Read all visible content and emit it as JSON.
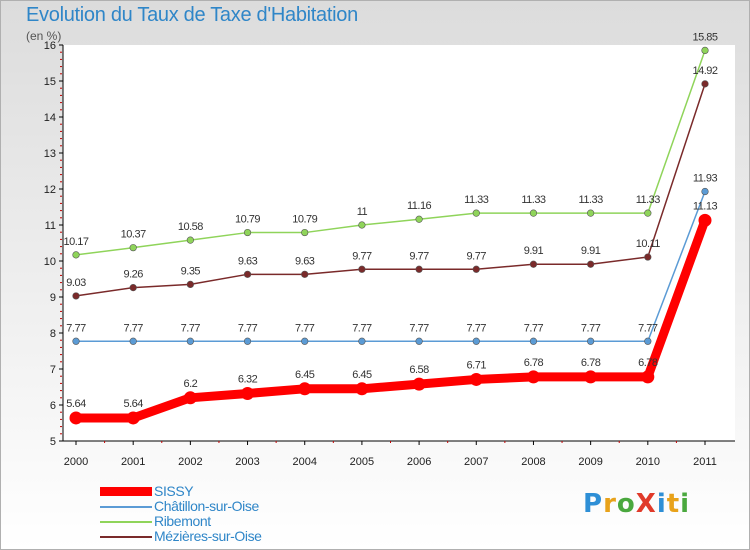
{
  "title": "Evolution du Taux de Taxe d'Habitation",
  "subtitle": "(en %)",
  "logo": {
    "text": "ProXiti",
    "letters": [
      {
        "ch": "P",
        "color": "#2e8fd6"
      },
      {
        "ch": "r",
        "color": "#e8a21a"
      },
      {
        "ch": "o",
        "color": "#4aa83e"
      },
      {
        "ch": "X",
        "color": "#e03a2a"
      },
      {
        "ch": "i",
        "color": "#2e8fd6"
      },
      {
        "ch": "t",
        "color": "#e8a21a"
      },
      {
        "ch": "i",
        "color": "#4aa83e"
      }
    ]
  },
  "chart_data": {
    "type": "line",
    "title": "Evolution du Taux de Taxe d'Habitation",
    "ylabel": "(en %)",
    "xlabel": "",
    "ylim": [
      5,
      16
    ],
    "yticks": [
      "5",
      "6",
      "7",
      "8",
      "9",
      "10",
      "11",
      "12",
      "13",
      "14",
      "15",
      "16"
    ],
    "categories": [
      "2000",
      "2001",
      "2002",
      "2003",
      "2004",
      "2005",
      "2006",
      "2007",
      "2008",
      "2009",
      "2010",
      "2011"
    ],
    "grid": false,
    "legend_position": "bottom-left",
    "series": [
      {
        "name": "SISSY",
        "color": "#ff0000",
        "emphasis": true,
        "values": [
          5.64,
          5.64,
          6.2,
          6.32,
          6.45,
          6.45,
          6.58,
          6.71,
          6.78,
          6.78,
          6.78,
          11.13
        ],
        "labels": [
          "5.64",
          "5.64",
          "6.2",
          "6.32",
          "6.45",
          "6.45",
          "6.58",
          "6.71",
          "6.78",
          "6.78",
          "6.78",
          "11.13"
        ]
      },
      {
        "name": "Châtillon-sur-Oise",
        "color": "#5b9bd5",
        "emphasis": false,
        "values": [
          7.77,
          7.77,
          7.77,
          7.77,
          7.77,
          7.77,
          7.77,
          7.77,
          7.77,
          7.77,
          7.77,
          11.93
        ],
        "labels": [
          "7.77",
          "7.77",
          "7.77",
          "7.77",
          "7.77",
          "7.77",
          "7.77",
          "7.77",
          "7.77",
          "7.77",
          "7.77",
          "11.93"
        ]
      },
      {
        "name": "Ribemont",
        "color": "#8fd45a",
        "emphasis": false,
        "values": [
          10.17,
          10.37,
          10.58,
          10.79,
          10.79,
          11,
          11.16,
          11.33,
          11.33,
          11.33,
          11.33,
          15.85
        ],
        "labels": [
          "10.17",
          "10.37",
          "10.58",
          "10.79",
          "10.79",
          "11",
          "11.16",
          "11.33",
          "11.33",
          "11.33",
          "11.33",
          "15.85"
        ]
      },
      {
        "name": "Mézières-sur-Oise",
        "color": "#7a2a2a",
        "emphasis": false,
        "values": [
          9.03,
          9.26,
          9.35,
          9.63,
          9.63,
          9.77,
          9.77,
          9.77,
          9.91,
          9.91,
          10.11,
          14.92
        ],
        "labels": [
          "9.03",
          "9.26",
          "9.35",
          "9.63",
          "9.63",
          "9.77",
          "9.77",
          "9.77",
          "9.91",
          "9.91",
          "10.11",
          "14.92"
        ]
      }
    ]
  }
}
